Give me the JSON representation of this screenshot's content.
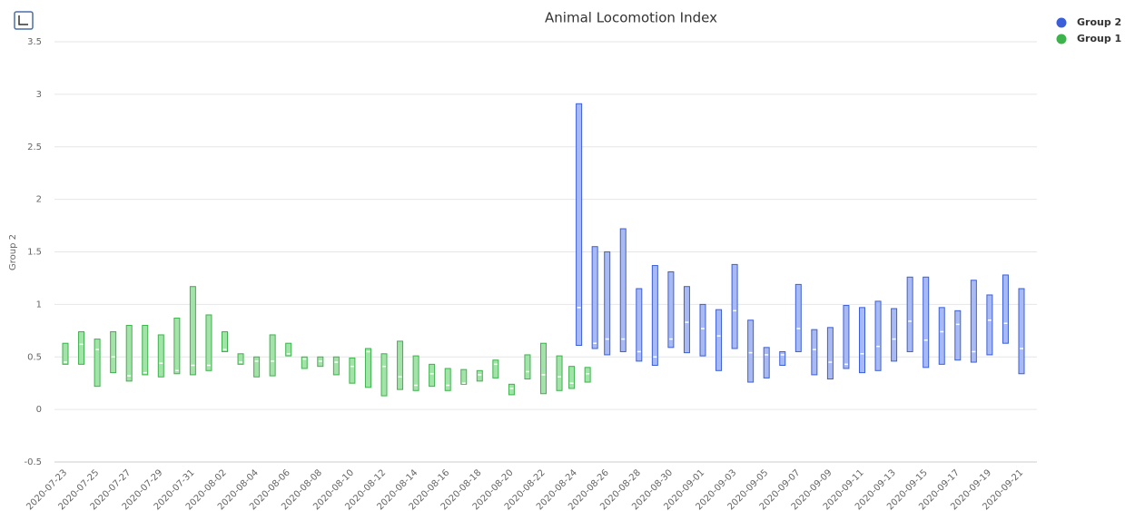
{
  "chart_data": {
    "type": "floating-bar",
    "title": "Animal Locomotion Index",
    "y_label": "Group 2",
    "categories": [
      "2020-07-23",
      null,
      "2020-07-25",
      null,
      "2020-07-27",
      null,
      "2020-07-29",
      null,
      "2020-07-31",
      null,
      "2020-08-02",
      null,
      "2020-08-04",
      null,
      "2020-08-06",
      null,
      "2020-08-08",
      null,
      "2020-08-10",
      null,
      "2020-08-12",
      null,
      "2020-08-14",
      null,
      "2020-08-16",
      null,
      "2020-08-18",
      null,
      "2020-08-20",
      null,
      "2020-08-22",
      null,
      "2020-08-24",
      null,
      "2020-08-26",
      null,
      "2020-08-28",
      null,
      "2020-08-30",
      null,
      "2020-09-01",
      null,
      "2020-09-03",
      null,
      "2020-09-05",
      null,
      "2020-09-07",
      null,
      "2020-09-09",
      null,
      "2020-09-11",
      null,
      "2020-09-13",
      null,
      "2020-09-15",
      null,
      "2020-09-17",
      null,
      "2020-09-19",
      null,
      "2020-09-21"
    ],
    "ylim": [
      -0.5,
      3.5
    ],
    "yticks": [
      -0.5,
      0,
      0.5,
      1,
      1.5,
      2,
      2.5,
      3,
      3.5
    ],
    "grid": true,
    "legend": "top-right",
    "series": [
      {
        "name": "Group 2",
        "color": "#3b5fd9",
        "fill": "#a9baf2",
        "low": [
          null,
          null,
          null,
          null,
          null,
          null,
          null,
          null,
          null,
          null,
          null,
          null,
          null,
          null,
          null,
          null,
          null,
          null,
          null,
          null,
          null,
          null,
          null,
          null,
          null,
          null,
          null,
          null,
          null,
          null,
          null,
          null,
          0.61,
          0.58,
          0.52,
          0.55,
          0.46,
          0.42,
          0.59,
          0.54,
          0.51,
          0.37,
          0.58,
          0.26,
          0.3,
          0.42,
          0.55,
          0.33,
          0.29,
          0.39,
          0.35,
          0.37,
          0.46,
          0.55,
          0.4,
          0.43,
          0.47,
          0.45,
          0.52,
          0.63,
          0.34
        ],
        "high": [
          null,
          null,
          null,
          null,
          null,
          null,
          null,
          null,
          null,
          null,
          null,
          null,
          null,
          null,
          null,
          null,
          null,
          null,
          null,
          null,
          null,
          null,
          null,
          null,
          null,
          null,
          null,
          null,
          null,
          null,
          null,
          null,
          2.91,
          1.55,
          1.5,
          1.72,
          1.15,
          1.37,
          1.31,
          1.17,
          1.0,
          0.95,
          1.38,
          0.85,
          0.59,
          0.55,
          1.19,
          0.76,
          0.78,
          0.99,
          0.97,
          1.03,
          0.96,
          1.26,
          1.26,
          0.97,
          0.94,
          1.23,
          1.09,
          1.28,
          1.15
        ],
        "median": [
          null,
          null,
          null,
          null,
          null,
          null,
          null,
          null,
          null,
          null,
          null,
          null,
          null,
          null,
          null,
          null,
          null,
          null,
          null,
          null,
          null,
          null,
          null,
          null,
          null,
          null,
          null,
          null,
          null,
          null,
          null,
          null,
          0.97,
          0.63,
          0.67,
          0.67,
          0.55,
          0.5,
          0.67,
          0.83,
          0.77,
          0.7,
          0.94,
          0.54,
          0.52,
          0.52,
          0.77,
          0.57,
          0.45,
          0.43,
          0.53,
          0.6,
          0.67,
          0.84,
          0.66,
          0.74,
          0.81,
          0.55,
          0.85,
          0.82,
          0.58
        ]
      },
      {
        "name": "Group 1",
        "color": "#3cb44b",
        "fill": "#a3e2a8",
        "low": [
          0.43,
          0.43,
          0.22,
          0.35,
          0.27,
          0.33,
          0.31,
          0.34,
          0.33,
          0.37,
          0.55,
          0.43,
          0.31,
          0.32,
          0.51,
          0.39,
          0.41,
          0.33,
          0.25,
          0.21,
          0.13,
          0.19,
          0.18,
          0.22,
          0.18,
          0.24,
          0.27,
          0.3,
          0.14,
          0.29,
          0.15,
          0.18,
          0.2,
          0.26,
          null,
          null,
          null,
          null,
          null,
          null,
          null,
          null,
          null,
          null,
          null,
          null,
          null,
          null,
          null,
          null,
          null,
          null,
          null,
          null,
          null,
          null,
          null,
          null,
          null,
          null,
          null
        ],
        "high": [
          0.63,
          0.74,
          0.67,
          0.74,
          0.8,
          0.8,
          0.71,
          0.87,
          1.17,
          0.9,
          0.74,
          0.53,
          0.5,
          0.71,
          0.63,
          0.5,
          0.5,
          0.5,
          0.49,
          0.58,
          0.53,
          0.65,
          0.51,
          0.43,
          0.39,
          0.38,
          0.37,
          0.47,
          0.24,
          0.52,
          0.63,
          0.51,
          0.41,
          0.4,
          null,
          null,
          null,
          null,
          null,
          null,
          null,
          null,
          null,
          null,
          null,
          null,
          null,
          null,
          null,
          null,
          null,
          null,
          null,
          null,
          null,
          null,
          null,
          null,
          null,
          null,
          null
        ],
        "median": [
          0.45,
          0.62,
          0.57,
          0.5,
          0.32,
          0.35,
          0.44,
          0.37,
          0.42,
          0.42,
          0.57,
          0.45,
          0.46,
          0.46,
          0.53,
          0.48,
          0.46,
          0.45,
          0.41,
          0.55,
          0.41,
          0.31,
          0.23,
          0.34,
          0.23,
          0.25,
          0.33,
          0.43,
          0.2,
          0.36,
          0.33,
          0.31,
          0.25,
          0.34,
          null,
          null,
          null,
          null,
          null,
          null,
          null,
          null,
          null,
          null,
          null,
          null,
          null,
          null,
          null,
          null,
          null,
          null,
          null,
          null,
          null,
          null,
          null,
          null,
          null,
          null,
          null
        ]
      }
    ]
  }
}
